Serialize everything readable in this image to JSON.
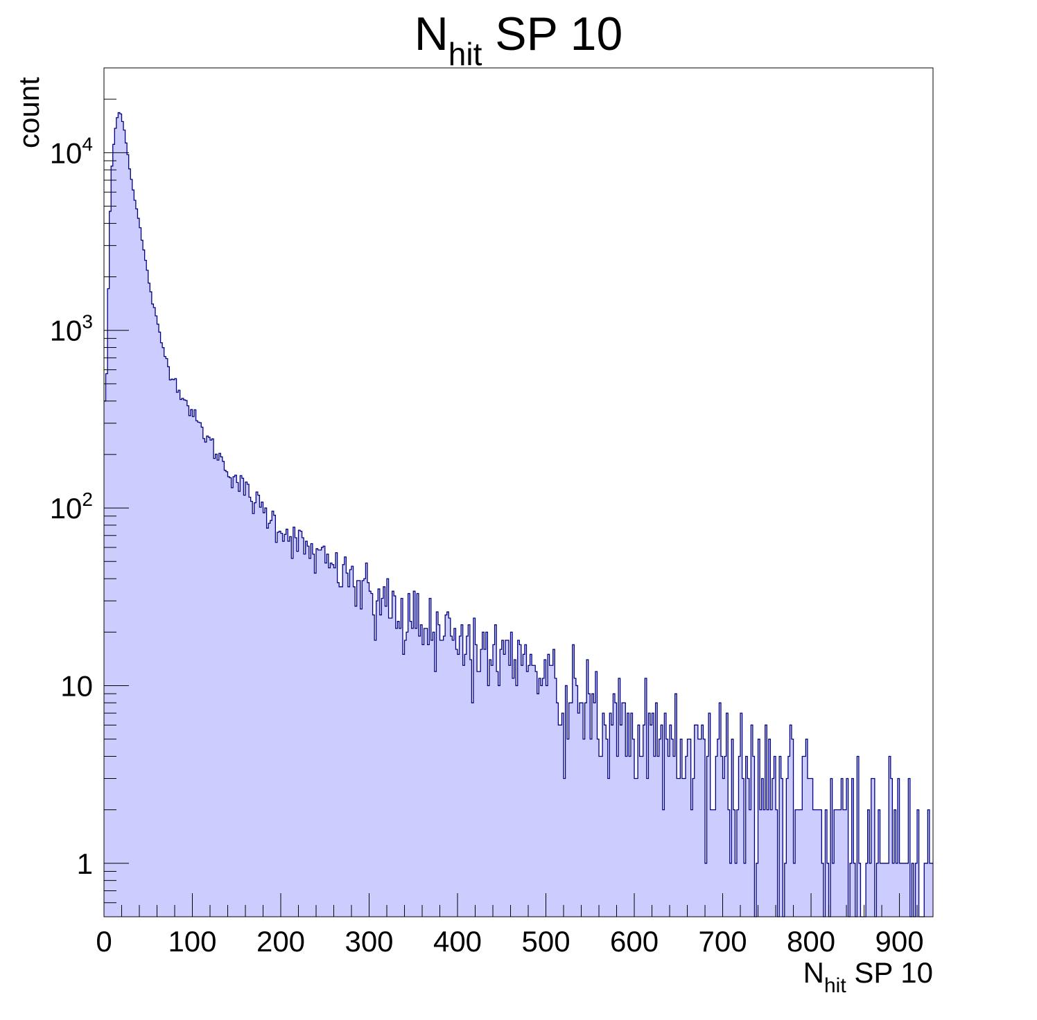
{
  "chart_data": {
    "type": "bar",
    "title": {
      "base": "N",
      "sub": "hit",
      "rest": " SP 10"
    },
    "xlabel": {
      "base": "N",
      "sub": "hit",
      "rest": " SP 10"
    },
    "ylabel": "count",
    "xlim": [
      0,
      938
    ],
    "ylim": [
      0.5,
      30000
    ],
    "y_scale": "log",
    "x_ticks": [
      "0",
      "100",
      "200",
      "300",
      "400",
      "500",
      "600",
      "700",
      "800",
      "900"
    ],
    "y_ticks": [
      {
        "value": 1,
        "label": "1"
      },
      {
        "value": 10,
        "label": "10"
      },
      {
        "value": 100,
        "base": "10",
        "exp": "2"
      },
      {
        "value": 1000,
        "base": "10",
        "exp": "3"
      },
      {
        "value": 10000,
        "base": "10",
        "exp": "4"
      }
    ],
    "bin_width": 2,
    "line_color": "#000080",
    "fill_color": "#ccccff",
    "series": [
      {
        "x_knots": [
          0,
          2,
          4,
          6,
          8,
          10,
          12,
          14,
          16,
          18,
          20,
          22,
          24,
          26,
          28,
          30,
          35,
          40,
          45,
          50,
          55,
          60,
          65,
          70,
          75,
          80,
          90,
          100,
          110,
          120,
          130,
          140,
          150,
          160,
          170,
          180,
          190,
          200,
          220,
          240,
          260,
          280,
          300,
          320,
          340,
          360,
          380,
          400,
          420,
          440,
          460,
          480,
          500,
          520,
          540,
          560,
          580,
          600,
          620,
          640,
          660,
          680,
          700,
          720,
          740,
          760,
          780,
          800,
          820,
          840,
          860,
          880,
          900,
          920,
          938
        ],
        "y_knots": [
          550,
          300,
          1000,
          3000,
          7000,
          10000,
          12500,
          15000,
          16500,
          17000,
          16000,
          14500,
          12500,
          10500,
          9000,
          7500,
          5500,
          4000,
          2800,
          2000,
          1450,
          1100,
          860,
          700,
          590,
          520,
          420,
          340,
          280,
          235,
          195,
          165,
          145,
          125,
          110,
          97,
          87,
          78,
          64,
          54,
          46,
          40,
          35,
          30,
          26,
          23,
          21,
          19,
          17,
          15,
          13,
          12,
          11,
          9.5,
          8.5,
          7.5,
          6.8,
          6,
          5.4,
          4.8,
          4.3,
          3.9,
          3.5,
          3.2,
          2.9,
          2.6,
          2.4,
          2.2,
          2.0,
          1.8,
          1.7,
          1.5,
          1.4,
          1.3,
          1.2
        ],
        "noise_seed": 12345
      }
    ]
  }
}
